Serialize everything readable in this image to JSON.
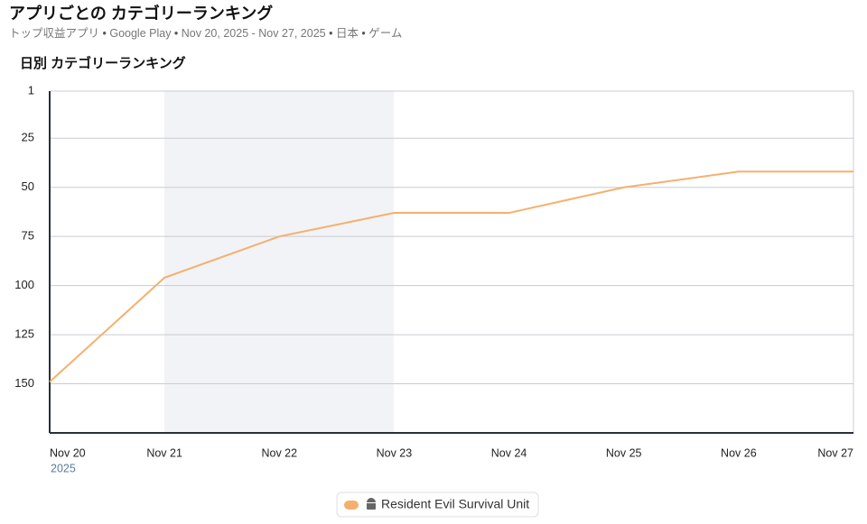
{
  "header": {
    "title": "アプリごとの カテゴリーランキング",
    "subtitle": [
      "トップ収益アプリ",
      "Google Play",
      "Nov 20, 2025 - Nov 27, 2025",
      "日本",
      "ゲーム"
    ]
  },
  "chart_data": {
    "type": "line",
    "title": "日別 カテゴリーランキング",
    "x": [
      "Nov 20",
      "Nov 21",
      "Nov 22",
      "Nov 23",
      "Nov 24",
      "Nov 25",
      "Nov 26",
      "Nov 27"
    ],
    "x_year_label": "2025",
    "series": [
      {
        "name": "Resident Evil Survival Unit",
        "color": "#f5b06e",
        "values": [
          149,
          96,
          75,
          63,
          63,
          50,
          42,
          42
        ]
      }
    ],
    "ylim": [
      1,
      175
    ],
    "y_inverted": true,
    "yticks": [
      1,
      25,
      50,
      75,
      100,
      125,
      150
    ],
    "grid": true
  }
}
